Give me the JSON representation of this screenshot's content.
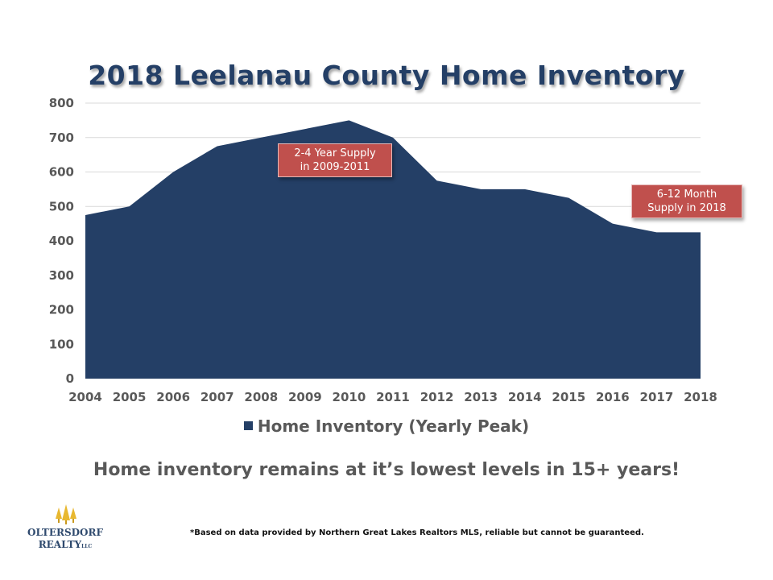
{
  "title": "2018 Leelanau County Home Inventory",
  "chart_data": {
    "type": "area",
    "title": "2018 Leelanau County Home Inventory",
    "x": [
      "2004",
      "2005",
      "2006",
      "2007",
      "2008",
      "2009",
      "2010",
      "2011",
      "2012",
      "2013",
      "2014",
      "2015",
      "2016",
      "2017",
      "2018"
    ],
    "series": [
      {
        "name": "Home Inventory (Yearly Peak)",
        "values": [
          475,
          500,
          600,
          675,
          700,
          725,
          750,
          700,
          575,
          550,
          550,
          525,
          450,
          425,
          425
        ],
        "color": "#243f66"
      }
    ],
    "yticks": [
      0,
      100,
      200,
      300,
      400,
      500,
      600,
      700,
      800
    ],
    "ylim": [
      0,
      800
    ],
    "grid": "horizontal",
    "legend": "bottom",
    "annotations": [
      {
        "text_line1": "2-4 Year Supply",
        "text_line2": "in 2009-2011",
        "color": "#c0504d"
      },
      {
        "text_line1": "6-12 Month",
        "text_line2": "Supply in 2018",
        "color": "#c0504d"
      }
    ]
  },
  "tagline": "Home inventory remains at it’s lowest levels in 15+ years!",
  "footnote": "*Based on data provided by Northern Great Lakes Realtors MLS, reliable but cannot be guaranteed.",
  "logo": {
    "line1": "OLTERSDORF",
    "line2": "REALTY",
    "suffix": "LLC"
  }
}
